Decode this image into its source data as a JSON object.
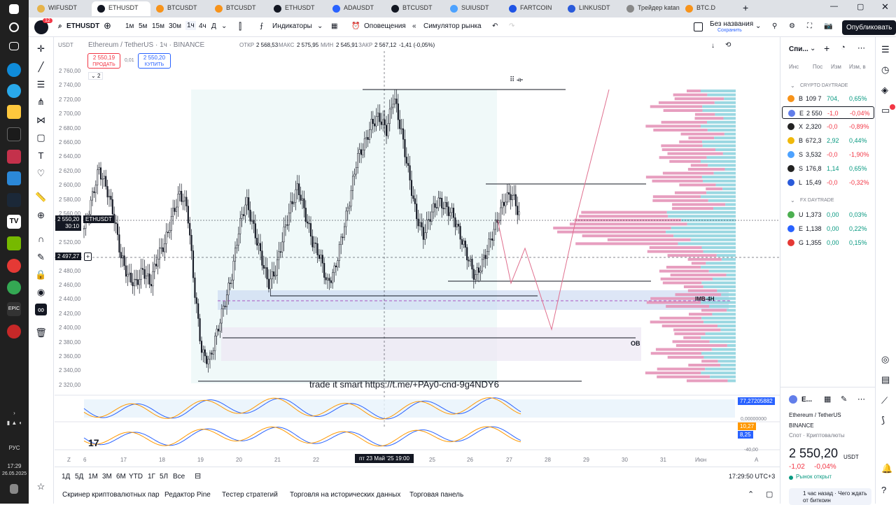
{
  "taskbar": {
    "lang": "РУС",
    "time": "17:29",
    "date": "26.05.2025"
  },
  "tabs": [
    {
      "label": "WIFUSDT",
      "color": "#e6b34a"
    },
    {
      "label": "ETHUSDT",
      "color": "#131722",
      "active": true
    },
    {
      "label": "BTCUSDT",
      "color": "#f7931a"
    },
    {
      "label": "BTCUSDT",
      "color": "#f7931a"
    },
    {
      "label": "ETHUSDT",
      "color": "#131722"
    },
    {
      "label": "ADAUSDT",
      "color": "#2962ff"
    },
    {
      "label": "BTCUSDT",
      "color": "#131722"
    },
    {
      "label": "SUIUSDT",
      "color": "#4da2ff"
    },
    {
      "label": "FARTCOIN",
      "color": "#1e53e5"
    },
    {
      "label": "LINKUSDT",
      "color": "#2a5ada"
    },
    {
      "label": "Трейдер katana",
      "color": "#888"
    },
    {
      "label": "BTC.D",
      "color": "#f7931a"
    }
  ],
  "toolbar": {
    "symbol": "ETHUSDT",
    "notif": "12",
    "tf": [
      "1м",
      "5м",
      "15м",
      "30м",
      "1ч",
      "4ч",
      "Д"
    ],
    "indicators": "Индикаторы",
    "alerts": "Оповещения",
    "replay": "Симулятор рынка",
    "layout_name": "Без названия",
    "saved": "Сохранить",
    "publish": "Опубликовать"
  },
  "legend": {
    "quote": "USDT",
    "title": "Ethereum / TetherUS · 1ч · BINANCE",
    "open_l": "ОТКР",
    "open": "2 568,53",
    "high_l": "МАКС",
    "high": "2 575,95",
    "low_l": "МИН",
    "low": "2 545,91",
    "close_l": "ЗАКР",
    "close": "2 567,12",
    "change": "-1,41 (-0,05%)",
    "sell": "2 550,19",
    "sell_label": "ПРОДАТЬ",
    "spread": "0,01",
    "buy": "2 550,20",
    "buy_label": "КУПИТЬ",
    "count": "2"
  },
  "axis": {
    "prices": [
      "2 760,00",
      "2 740,00",
      "2 720,00",
      "2 700,00",
      "2 680,00",
      "2 660,00",
      "2 640,00",
      "2 620,00",
      "2 600,00",
      "2 580,00",
      "2 560,00",
      "2 540,00",
      "2 520,00",
      "2 500,00",
      "2 480,00",
      "2 460,00",
      "2 440,00",
      "2 420,00",
      "2 400,00",
      "2 380,00",
      "2 360,00",
      "2 340,00",
      "2 320,00"
    ],
    "dates": [
      "6",
      "17",
      "18",
      "19",
      "20",
      "21",
      "22",
      "25",
      "26",
      "27",
      "28",
      "29",
      "30",
      "31",
      "Июн"
    ],
    "crosshair_date": "пт 23 Май '25   19:00",
    "cur_price": "2 550,20",
    "cur_timer": "30:10",
    "cur_sym": "ETHUSDT",
    "cross_price": "2 497,27",
    "ind1_top": "77,27205882",
    "ind1_bottom": "0,00000000",
    "ind2_a": "10,27",
    "ind2_b": "8,25",
    "ind2_c": "-40,00"
  },
  "annotations": {
    "imb": "IMB-4H",
    "ob": "OB",
    "watermark": "trade it smart https://t.me/+PAy0-cnd-9g4NDY6"
  },
  "timeframes": [
    "1Д",
    "5Д",
    "1М",
    "3М",
    "6М",
    "YTD",
    "1Г",
    "5Л",
    "Все"
  ],
  "clock": "17:29:50 UTC+3",
  "bottom_tabs": [
    "Скринер криптовалютных пар",
    "Редактор Pine",
    "Тестер стратегий",
    "Торговля на исторических данных",
    "Торговая панель"
  ],
  "watchlist": {
    "title": "Спи...",
    "cols": [
      "Инс",
      "Пос",
      "Изм",
      "Изм, в"
    ],
    "group1": "CRYPTO DAYTRADE",
    "rows1": [
      {
        "s": "B",
        "p": "109 7",
        "c": "704,",
        "pc": "0,65%",
        "pos": true,
        "icon": "#f7931a"
      },
      {
        "s": "E",
        "p": "2 550",
        "c": "-1,0",
        "pc": "-0,04%",
        "pos": false,
        "icon": "#627eea"
      },
      {
        "s": "X",
        "p": "2,320",
        "c": "-0,0",
        "pc": "-0,89%",
        "pos": false,
        "icon": "#222"
      },
      {
        "s": "B",
        "p": "672,3",
        "c": "2,92",
        "pc": "0,44%",
        "pos": true,
        "icon": "#f0b90b"
      },
      {
        "s": "S",
        "p": "3,532",
        "c": "-0,0",
        "pc": "-1,90%",
        "pos": false,
        "icon": "#4da2ff"
      },
      {
        "s": "S",
        "p": "176,8",
        "c": "1,14",
        "pc": "0,65%",
        "pos": true,
        "icon": "#222"
      },
      {
        "s": "L",
        "p": "15,49",
        "c": "-0,0",
        "pc": "-0,32%",
        "pos": false,
        "icon": "#2a5ada"
      }
    ],
    "group2": "FX DAYTRADE",
    "rows2": [
      {
        "s": "U",
        "p": "1,373",
        "c": "0,00",
        "pc": "0,03%",
        "pos": true,
        "icon": "#4caf50"
      },
      {
        "s": "E",
        "p": "1,138",
        "c": "0,00",
        "pc": "0,22%",
        "pos": true,
        "icon": "#2962ff"
      },
      {
        "s": "G",
        "p": "1,355",
        "c": "0,00",
        "pc": "0,15%",
        "pos": true,
        "icon": "#e53935"
      }
    ]
  },
  "details": {
    "sym": "E...",
    "name": "Ethereum / TetherUS",
    "exchange": "BINANCE",
    "type": "Спот · Криптовалюты",
    "price": "2 550,20",
    "cur": "USDT",
    "change": "-1,02",
    "change_pct": "-0,04%",
    "status": "Рынок открыт",
    "news": "1 час назад · Чего ждать от биткоин"
  },
  "chart_data": {
    "type": "candlestick",
    "symbol": "ETHUSDT",
    "timeframe": "1ч",
    "ylim": [
      2320,
      2770
    ],
    "close_path": [
      2540,
      2580,
      2625,
      2600,
      2560,
      2500,
      2470,
      2460,
      2480,
      2460,
      2500,
      2520,
      2560,
      2590,
      2570,
      2450,
      2360,
      2350,
      2390,
      2430,
      2470,
      2540,
      2580,
      2540,
      2500,
      2460,
      2480,
      2530,
      2570,
      2600,
      2560,
      2520,
      2500,
      2460,
      2480,
      2530,
      2580,
      2640,
      2660,
      2690,
      2700,
      2680,
      2730,
      2680,
      2620,
      2560,
      2530,
      2560,
      2580,
      2570,
      2560,
      2530,
      2500,
      2470,
      2490,
      2520,
      2550,
      2580,
      2590,
      2560
    ]
  }
}
